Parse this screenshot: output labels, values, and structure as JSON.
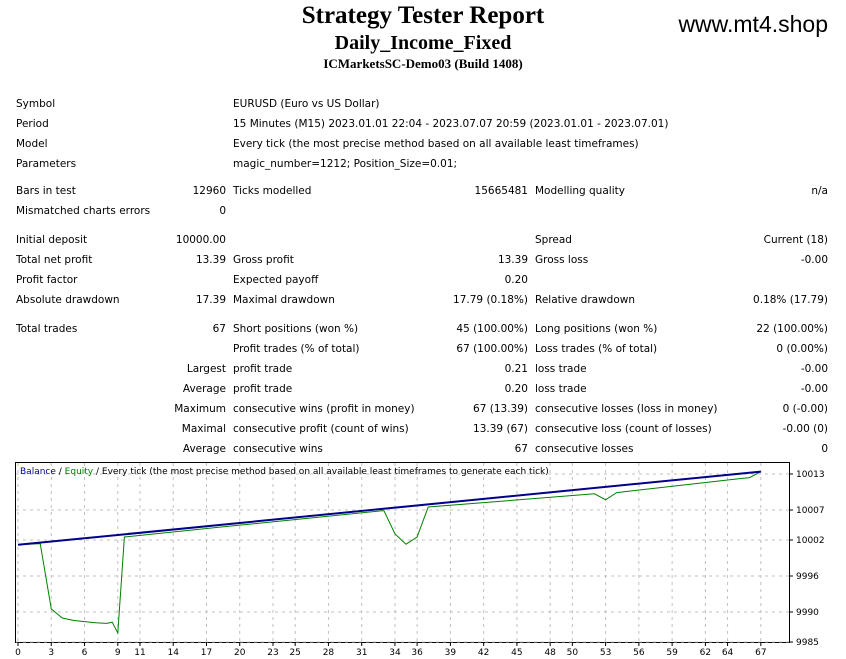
{
  "header": {
    "title": "Strategy Tester Report",
    "ea_name": "Daily_Income_Fixed",
    "server": "ICMarketsSC-Demo03 (Build 1408)",
    "site": "www.mt4.shop"
  },
  "info": [
    {
      "label": "Symbol",
      "value": "EURUSD (Euro vs US Dollar)"
    },
    {
      "label": "Period",
      "value": "15 Minutes (M15) 2023.01.01 22:04 - 2023.07.07 20:59 (2023.01.01 - 2023.07.01)"
    },
    {
      "label": "Model",
      "value": "Every tick (the most precise method based on all available least timeframes)"
    },
    {
      "label": "Parameters",
      "value": "magic_number=1212; Position_Size=0.01;"
    }
  ],
  "stats": {
    "bars_label": "Bars in test",
    "bars_value": "12960",
    "ticks_label": "Ticks modelled",
    "ticks_value": "15665481",
    "quality_label": "Modelling quality",
    "quality_value": "n/a",
    "mismatch_label": "Mismatched charts errors",
    "mismatch_value": "0",
    "deposit_label": "Initial deposit",
    "deposit_value": "10000.00",
    "spread_label": "Spread",
    "spread_value": "Current (18)",
    "net_label": "Total net profit",
    "net_value": "13.39",
    "gross_profit_label": "Gross profit",
    "gross_profit_value": "13.39",
    "gross_loss_label": "Gross loss",
    "gross_loss_value": "-0.00",
    "pf_label": "Profit factor",
    "payoff_label": "Expected payoff",
    "payoff_value": "0.20",
    "abs_dd_label": "Absolute drawdown",
    "abs_dd_value": "17.39",
    "max_dd_label": "Maximal drawdown",
    "max_dd_value": "17.79 (0.18%)",
    "rel_dd_label": "Relative drawdown",
    "rel_dd_value": "0.18% (17.79)",
    "trades_label": "Total trades",
    "trades_value": "67",
    "short_label": "Short positions (won %)",
    "short_value": "45 (100.00%)",
    "long_label": "Long positions (won %)",
    "long_value": "22 (100.00%)",
    "ptrades_label": "Profit trades (% of total)",
    "ptrades_value": "67 (100.00%)",
    "ltrades_label": "Loss trades (% of total)",
    "ltrades_value": "0 (0.00%)",
    "largest_label": "Largest",
    "largest_profit_label": "profit trade",
    "largest_profit_value": "0.21",
    "largest_loss_label": "loss trade",
    "largest_loss_value": "-0.00",
    "average_label": "Average",
    "avg_profit_label": "profit trade",
    "avg_profit_value": "0.20",
    "avg_loss_label": "loss trade",
    "avg_loss_value": "-0.00",
    "maximum_label": "Maximum",
    "max_wins_label": "consecutive wins (profit in money)",
    "max_wins_value": "67 (13.39)",
    "max_losses_label": "consecutive losses (loss in money)",
    "max_losses_value": "0 (-0.00)",
    "maximal_label": "Maximal",
    "maximal_profit_label": "consecutive profit (count of wins)",
    "maximal_profit_value": "13.39 (67)",
    "maximal_loss_label": "consecutive loss (count of losses)",
    "maximal_loss_value": "-0.00 (0)",
    "average2_label": "Average",
    "avg_wins_label": "consecutive wins",
    "avg_wins_value": "67",
    "avg_losses_label": "consecutive losses",
    "avg_losses_value": "0"
  },
  "chart_data": {
    "type": "line",
    "legend": {
      "balance": "Balance",
      "sep": " / ",
      "equity": "Equity",
      "rest": " / Every tick (the most precise method based on all available least timeframes to generate each tick)"
    },
    "colors": {
      "balance": "#00008b",
      "equity": "#008000",
      "grid": "#c0c0c0"
    },
    "xlim": [
      0,
      69
    ],
    "ylim": [
      9985,
      10015
    ],
    "x_ticks": [
      0,
      3,
      6,
      9,
      11,
      14,
      17,
      20,
      23,
      25,
      28,
      31,
      34,
      36,
      39,
      42,
      45,
      48,
      50,
      53,
      56,
      59,
      62,
      64,
      67
    ],
    "y_ticks": [
      10013,
      10007,
      10002,
      9996,
      9990,
      9985
    ],
    "grid": true,
    "balance": [
      [
        0,
        10001.2
      ],
      [
        67,
        10013.4
      ]
    ],
    "equity": [
      [
        0,
        10001.2
      ],
      [
        2,
        10001.4
      ],
      [
        3,
        9990.5
      ],
      [
        4,
        9989
      ],
      [
        5,
        9988.6
      ],
      [
        6,
        9988.4
      ],
      [
        7,
        9988.2
      ],
      [
        8,
        9988.1
      ],
      [
        8.5,
        9988.3
      ],
      [
        9,
        9986.5
      ],
      [
        9.6,
        10002.5
      ],
      [
        18,
        10004.1
      ],
      [
        33,
        10006.9
      ],
      [
        34,
        10003
      ],
      [
        35,
        10001.3
      ],
      [
        36,
        10002.5
      ],
      [
        37,
        10007.5
      ],
      [
        52,
        10009.7
      ],
      [
        53,
        10008.7
      ],
      [
        54,
        10009.9
      ],
      [
        65,
        10012.2
      ],
      [
        66,
        10012.4
      ],
      [
        67,
        10013.4
      ]
    ]
  }
}
